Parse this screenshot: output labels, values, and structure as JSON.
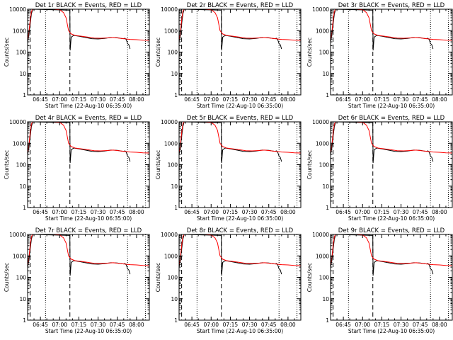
{
  "chart_data": [
    {
      "type": "line",
      "title": "Det 1r BLACK = Events, RED = LLD"
    },
    {
      "type": "line",
      "title": "Det 2r BLACK = Events, RED = LLD"
    },
    {
      "type": "line",
      "title": "Det 3r BLACK = Events, RED = LLD"
    },
    {
      "type": "line",
      "title": "Det 4r BLACK = Events, RED = LLD"
    },
    {
      "type": "line",
      "title": "Det 5r BLACK = Events, RED = LLD"
    },
    {
      "type": "line",
      "title": "Det 6r BLACK = Events, RED = LLD"
    },
    {
      "type": "line",
      "title": "Det 7r BLACK = Events, RED = LLD"
    },
    {
      "type": "line",
      "title": "Det 8r BLACK = Events, RED = LLD"
    },
    {
      "type": "line",
      "title": "Det 9r BLACK = Events, RED = LLD"
    }
  ],
  "shared": {
    "xlabel": "Start Time (22-Aug-10 06:35:00)",
    "ylabel": "Counts/sec",
    "xlim_min_from_start": [
      0,
      95
    ],
    "x_ticks": [
      {
        "label": "06:45",
        "min": 10
      },
      {
        "label": "07:00",
        "min": 25
      },
      {
        "label": "07:15",
        "min": 40
      },
      {
        "label": "07:30",
        "min": 55
      },
      {
        "label": "07:45",
        "min": 70
      },
      {
        "label": "08:00",
        "min": 85
      }
    ],
    "y_scale": "log",
    "ylim": [
      1,
      10000
    ],
    "y_ticks": [
      {
        "label": "1",
        "v": 1
      },
      {
        "label": "10",
        "v": 10
      },
      {
        "label": "100",
        "v": 100
      },
      {
        "label": "1000",
        "v": 1000
      },
      {
        "label": "10000",
        "v": 10000
      }
    ],
    "dotted_lines_min": [
      14,
      78,
      92
    ],
    "dashed_lines_min": [
      2,
      33
    ],
    "series": [
      {
        "color": "#000000",
        "points": [
          [
            0,
            300
          ],
          [
            1,
            600
          ],
          [
            2,
            2000
          ],
          [
            3,
            6000
          ],
          [
            4,
            10000
          ],
          [
            33,
            9000
          ],
          [
            33.2,
            120
          ],
          [
            34,
            500
          ],
          [
            36,
            600
          ],
          [
            40,
            550
          ],
          [
            45,
            480
          ],
          [
            50,
            420
          ],
          [
            55,
            410
          ],
          [
            60,
            430
          ],
          [
            65,
            480
          ],
          [
            70,
            470
          ],
          [
            73,
            430
          ],
          [
            75,
            420
          ],
          [
            76,
            440
          ],
          [
            77,
            380
          ],
          [
            78,
            250
          ],
          [
            79,
            220
          ],
          [
            80,
            140
          ]
        ]
      },
      {
        "color": "#ff0000",
        "points": [
          [
            0,
            350
          ],
          [
            1,
            800
          ],
          [
            2,
            3000
          ],
          [
            3,
            8000
          ],
          [
            4,
            10000
          ],
          [
            20,
            10000
          ],
          [
            25,
            9500
          ],
          [
            28,
            7000
          ],
          [
            30,
            4000
          ],
          [
            31,
            2000
          ],
          [
            32,
            1000
          ],
          [
            34,
            700
          ],
          [
            37,
            600
          ],
          [
            42,
            550
          ],
          [
            47,
            500
          ],
          [
            52,
            450
          ],
          [
            57,
            440
          ],
          [
            62,
            460
          ],
          [
            67,
            480
          ],
          [
            71,
            450
          ],
          [
            75,
            420
          ],
          [
            80,
            390
          ],
          [
            85,
            380
          ],
          [
            90,
            360
          ],
          [
            95,
            350
          ]
        ]
      }
    ]
  }
}
